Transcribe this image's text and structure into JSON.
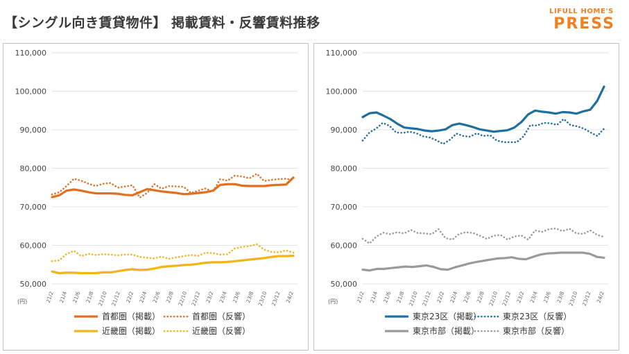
{
  "header": {
    "title": "【シングル向き賃貸物件】 掲載賃料・反響賃料推移",
    "logo_sub": "LIFULL HOME'S",
    "logo_main": "PRESS"
  },
  "colors": {
    "shuto": "#e07020",
    "kinki": "#f2b31b",
    "tokyo23": "#1f6f9e",
    "tokyoshi": "#9a9a9a"
  },
  "chart_data": [
    {
      "type": "line",
      "unit_label": "(円)",
      "ylim": [
        50000,
        110000
      ],
      "yticks": [
        "50,000",
        "60,000",
        "70,000",
        "80,000",
        "90,000",
        "100,000",
        "110,000"
      ],
      "xticks": [
        "21/2",
        "21/4",
        "21/6",
        "21/8",
        "21/10",
        "21/12",
        "22/2",
        "22/4",
        "22/6",
        "22/8",
        "22/10",
        "22/12",
        "23/2",
        "23/4",
        "23/6",
        "23/8",
        "23/10",
        "23/12",
        "24/2"
      ],
      "series": [
        {
          "name": "首都圏（掲載）",
          "style": "solid",
          "color": "#e07020",
          "values": [
            72500,
            73000,
            74200,
            74500,
            74200,
            73800,
            73500,
            73500,
            73500,
            73400,
            73100,
            73000,
            73800,
            74600,
            74300,
            74000,
            73800,
            73600,
            73300,
            73400,
            73600,
            73800,
            74200,
            75700,
            75900,
            75900,
            75500,
            75400,
            75400,
            75400,
            75600,
            75700,
            75800,
            77600
          ]
        },
        {
          "name": "首都圏（反響）",
          "style": "dotted",
          "color": "#e07020",
          "values": [
            73200,
            73800,
            75400,
            77300,
            76800,
            76000,
            75400,
            76000,
            76200,
            75000,
            75300,
            75600,
            72400,
            73600,
            75900,
            74700,
            75400,
            75300,
            75200,
            73600,
            74200,
            74800,
            73900,
            77200,
            76800,
            78100,
            77900,
            77400,
            78600,
            76700,
            77000,
            77200,
            77300,
            76900
          ]
        },
        {
          "name": "近畿圏（掲載）",
          "style": "solid",
          "color": "#f2b31b",
          "values": [
            53200,
            52800,
            52900,
            52900,
            52800,
            52800,
            52800,
            53000,
            53000,
            53300,
            53600,
            53800,
            53600,
            53700,
            54000,
            54400,
            54600,
            54700,
            54900,
            55000,
            55200,
            55500,
            55600,
            55600,
            55700,
            55900,
            56100,
            56300,
            56500,
            56700,
            57000,
            57200,
            57200,
            57300
          ]
        },
        {
          "name": "近畿圏（反響）",
          "style": "dotted",
          "color": "#f2b31b",
          "values": [
            55900,
            56100,
            57800,
            58600,
            57200,
            57800,
            57500,
            57700,
            57600,
            57400,
            57600,
            57600,
            57000,
            56800,
            56600,
            57100,
            56500,
            56900,
            57200,
            57500,
            57300,
            58100,
            58000,
            57600,
            57700,
            59200,
            59600,
            59800,
            60300,
            58900,
            58300,
            58200,
            58700,
            58100
          ]
        }
      ]
    },
    {
      "type": "line",
      "unit_label": "(円)",
      "ylim": [
        50000,
        110000
      ],
      "yticks": [
        "50,000",
        "60,000",
        "70,000",
        "80,000",
        "90,000",
        "100,000",
        "110,000"
      ],
      "xticks": [
        "21/2",
        "21/4",
        "21/6",
        "21/8",
        "21/10",
        "21/12",
        "22/2",
        "22/4",
        "22/6",
        "22/8",
        "22/10",
        "22/12",
        "23/2",
        "23/4",
        "23/6",
        "23/8",
        "23/10",
        "23/12",
        "24/2"
      ],
      "series": [
        {
          "name": "東京23区（掲載）",
          "style": "solid",
          "color": "#1f6f9e",
          "values": [
            93300,
            94300,
            94500,
            93700,
            92800,
            91600,
            90600,
            90400,
            90200,
            89800,
            89600,
            89800,
            90100,
            91200,
            91600,
            91200,
            90700,
            90100,
            89800,
            89500,
            89700,
            89900,
            90600,
            92000,
            94000,
            95000,
            94700,
            94500,
            94200,
            94600,
            94500,
            94200,
            94800,
            95200,
            97500,
            101200
          ]
        },
        {
          "name": "東京23区（反響）",
          "style": "dotted",
          "color": "#1f6f9e",
          "values": [
            87200,
            89300,
            90300,
            91800,
            91000,
            89300,
            89200,
            89500,
            89100,
            88300,
            88000,
            87300,
            86300,
            87400,
            89000,
            88400,
            88200,
            89100,
            88400,
            88600,
            87200,
            86800,
            86800,
            86800,
            88300,
            91200,
            91100,
            91800,
            91700,
            91300,
            92800,
            91200,
            90900,
            90300,
            89300,
            88400,
            90300
          ]
        },
        {
          "name": "東京市部（掲載）",
          "style": "solid",
          "color": "#9a9a9a",
          "values": [
            53700,
            53500,
            53900,
            53900,
            54100,
            54300,
            54500,
            54400,
            54600,
            54800,
            54400,
            53800,
            53700,
            54300,
            54800,
            55300,
            55700,
            56000,
            56300,
            56600,
            56700,
            56900,
            56500,
            56400,
            57000,
            57600,
            57900,
            58000,
            58100,
            58100,
            58100,
            58100,
            57800,
            57000,
            56800
          ]
        },
        {
          "name": "東京市部（反響）",
          "style": "dotted",
          "color": "#9a9a9a",
          "values": [
            61700,
            60500,
            62300,
            63300,
            62900,
            63400,
            63100,
            64000,
            63200,
            63100,
            62900,
            64200,
            61900,
            61500,
            63000,
            63400,
            63200,
            62500,
            61700,
            62500,
            62700,
            61500,
            62300,
            62600,
            61500,
            63900,
            63500,
            64200,
            64400,
            63700,
            64300,
            63100,
            63000,
            63900,
            62700,
            62200
          ]
        }
      ]
    }
  ]
}
